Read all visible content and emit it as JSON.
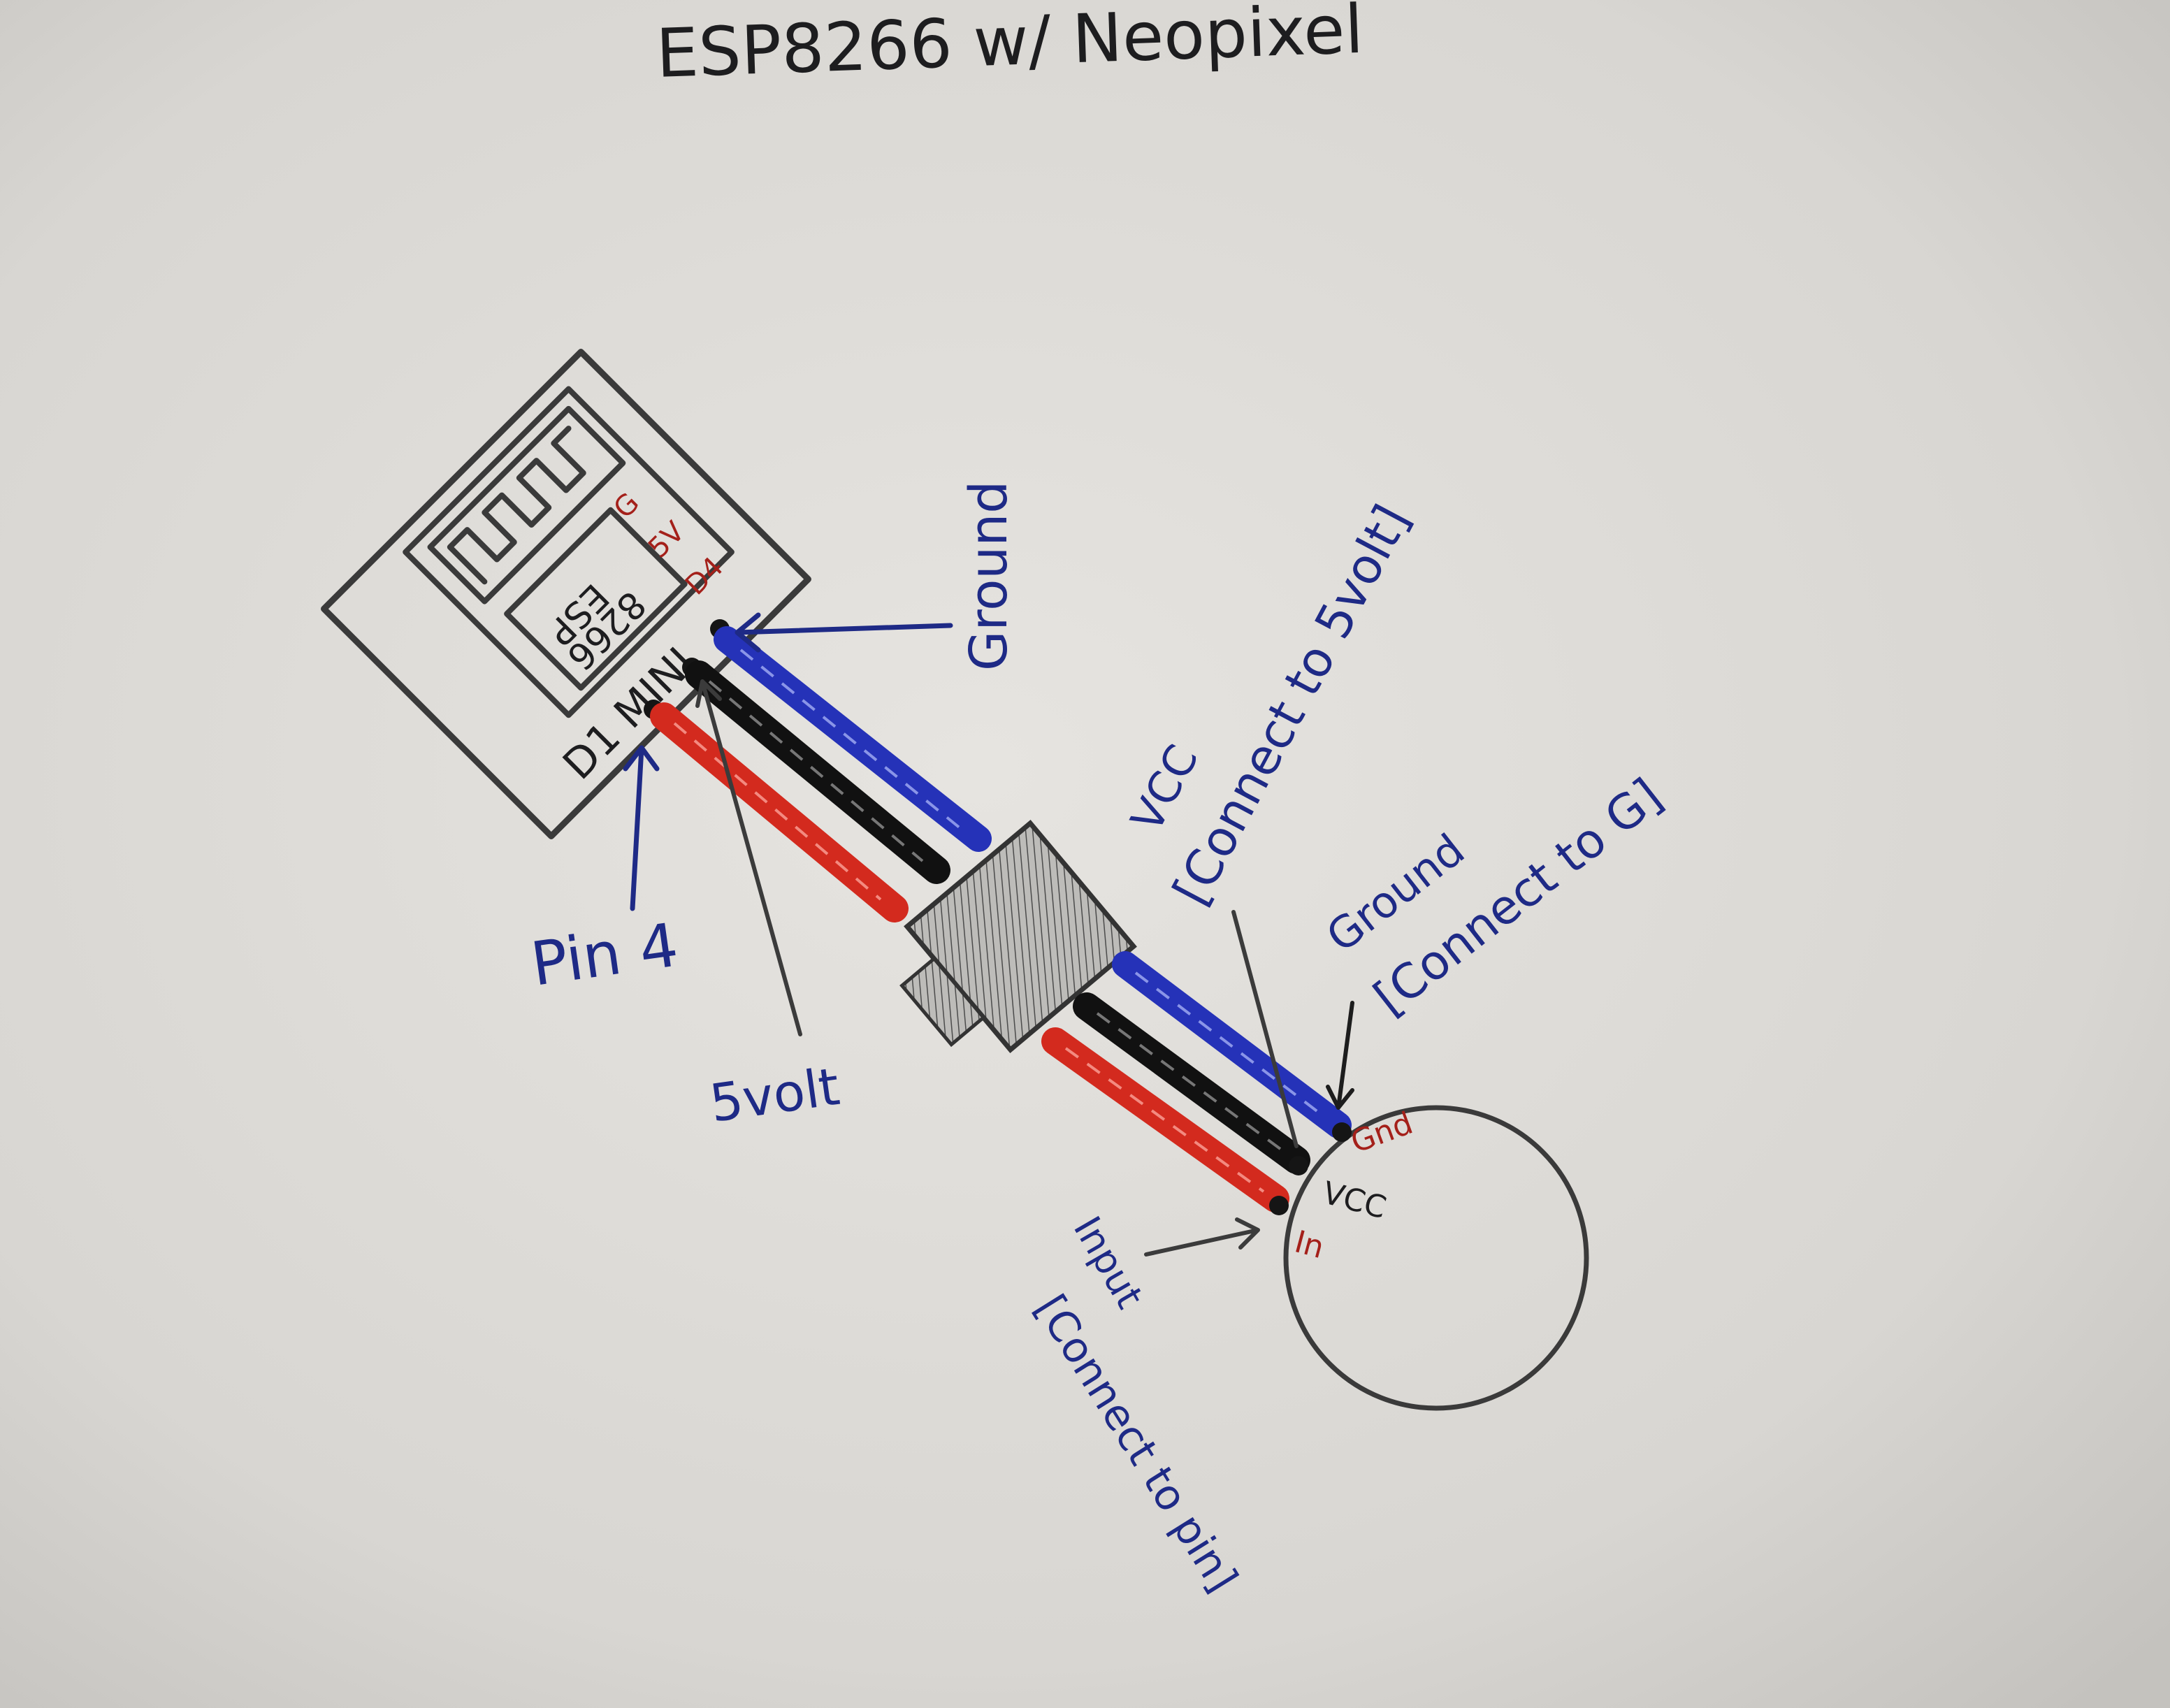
{
  "title": "ESP8266 w/ Neopixel",
  "board": {
    "name": "D1 MINI",
    "chip_label_line1": "ESP",
    "chip_label_line2": "8266",
    "pins": [
      "G",
      "5V",
      "D4"
    ]
  },
  "labels": {
    "ground_top": "Ground",
    "pin4": "Pin 4",
    "five_volt": "5volt",
    "vcc_title": "VCC",
    "vcc_note": "[Connect to 5volt]",
    "ground_title": "Ground",
    "ground_note": "[Connect to G]",
    "input_title": "Input",
    "input_note": "[Connect to pin]"
  },
  "neopixel": {
    "pins": [
      "Gnd",
      "VCC",
      "In"
    ]
  },
  "colors": {
    "paper": "#dedcd8",
    "pencil": "#3a3a3a",
    "blue_ink": "#1e2a86",
    "red_ink": "#a4201a",
    "wire_blue": "#2532b8",
    "wire_black": "#111111",
    "wire_red": "#d32a1e"
  }
}
